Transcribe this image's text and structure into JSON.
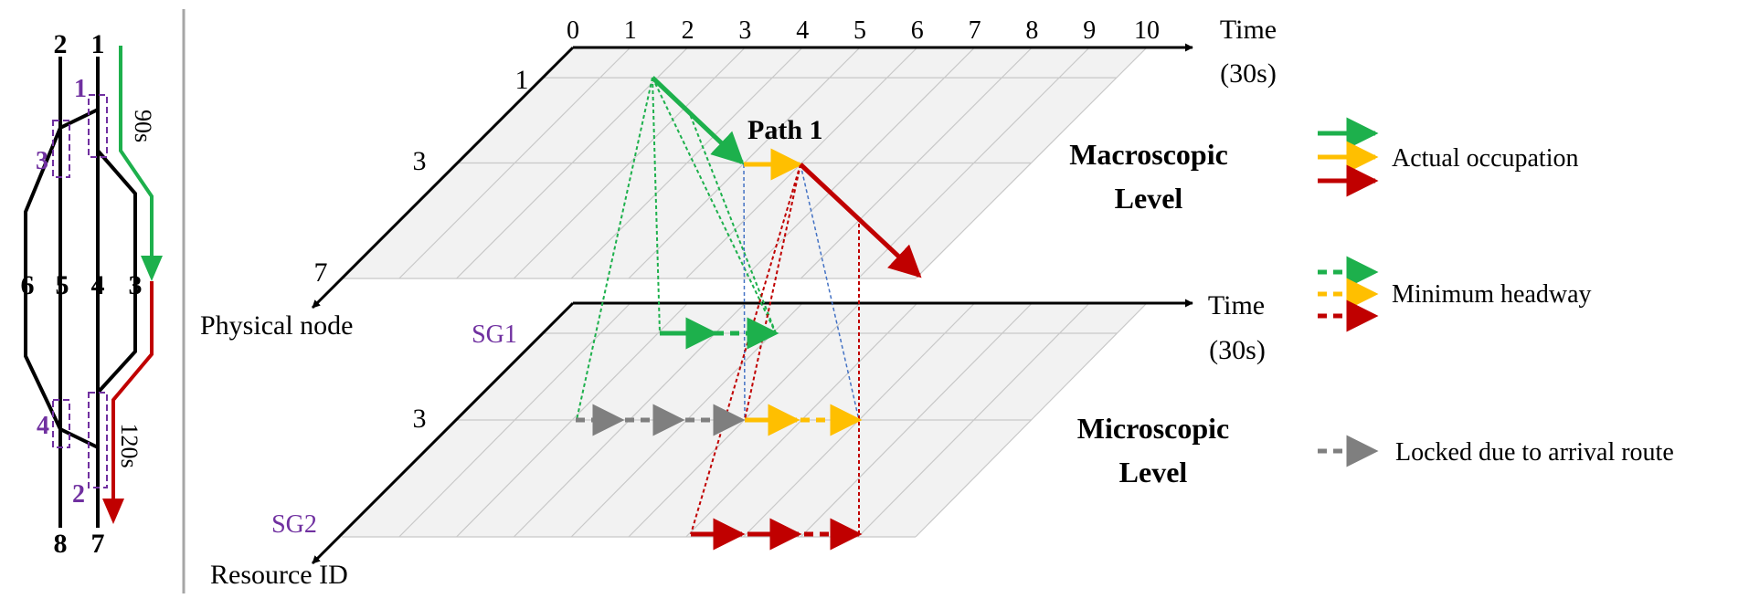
{
  "colors": {
    "green": "#1db04c",
    "orange": "#ffbf00",
    "red": "#c00000",
    "gray": "#7f7f7f",
    "purple": "#7030a0",
    "blue": "#4472c4",
    "plane_fill": "#f2f2f2",
    "grid": "#bfbfbf",
    "black": "#000000"
  },
  "track": {
    "top_labels": [
      "2",
      "1"
    ],
    "mid_labels": [
      "6",
      "5",
      "4",
      "3"
    ],
    "bottom_labels": [
      "8",
      "7"
    ],
    "resource_labels": [
      "1",
      "3",
      "4",
      "2"
    ],
    "time_top": "90s",
    "time_bottom": "120s"
  },
  "macro": {
    "time_ticks": [
      "0",
      "1",
      "2",
      "3",
      "4",
      "5",
      "6",
      "7",
      "8",
      "9",
      "10"
    ],
    "time_label": "Time",
    "time_unit": "(30s)",
    "node_ticks": [
      "1",
      "3",
      "7"
    ],
    "axis_label": "Physical node",
    "path_label": "Path 1",
    "level_line1": "Macroscopic",
    "level_line2": "Level"
  },
  "micro": {
    "time_label": "Time",
    "time_unit": "(30s)",
    "tick_label": "3",
    "sg1": "SG1",
    "sg2": "SG2",
    "axis_label": "Resource ID",
    "level_line1": "Microscopic",
    "level_line2": "Level"
  },
  "legend": {
    "actual": "Actual occupation",
    "headway": "Minimum headway",
    "locked": "Locked due to arrival route"
  }
}
